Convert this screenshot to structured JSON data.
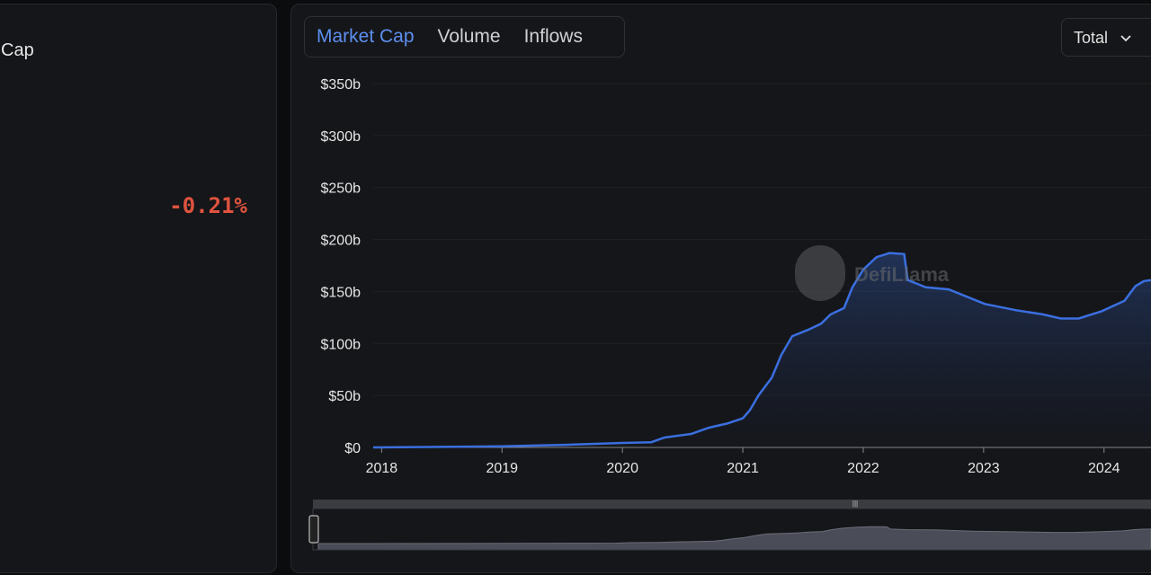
{
  "sidebar": {
    "label": "Cap",
    "change": "-0.21%"
  },
  "tabs": [
    "Market Cap",
    "Volume",
    "Inflows"
  ],
  "dropdown": "Total",
  "watermark": "DefiLlama",
  "chart_data": {
    "type": "line",
    "x": [
      2017.93,
      2019.0,
      2019.53,
      2020.0,
      2020.24,
      2020.35,
      2020.57,
      2020.72,
      2020.87,
      2021.0,
      2021.06,
      2021.13,
      2021.24,
      2021.32,
      2021.41,
      2021.54,
      2021.65,
      2021.73,
      2021.84,
      2021.91,
      2022.0,
      2022.11,
      2022.22,
      2022.34,
      2022.37,
      2022.52,
      2022.71,
      2022.86,
      2023.01,
      2023.27,
      2023.49,
      2023.64,
      2023.79,
      2023.98,
      2024.17,
      2024.26,
      2024.33,
      2024.39
    ],
    "series": [
      {
        "name": "Market Cap",
        "color": "#3b6fe0",
        "values": [
          0,
          1,
          2.5,
          4.3,
          5,
          9.5,
          13,
          19,
          23,
          28,
          36,
          50,
          67,
          89,
          107,
          113,
          119,
          128,
          134,
          154,
          171,
          183,
          187,
          186,
          161,
          154,
          152,
          145,
          138,
          132,
          128,
          124,
          124,
          131,
          141,
          155,
          160,
          161
        ]
      }
    ],
    "xlim": [
      2017.93,
      2024.39
    ],
    "xticks": [
      2018,
      2019,
      2020,
      2021,
      2022,
      2023,
      2024
    ],
    "ylim": [
      0,
      350
    ],
    "yticks": [
      {
        "value": 0,
        "label": "$0"
      },
      {
        "value": 50,
        "label": "$50b"
      },
      {
        "value": 100,
        "label": "$100b"
      },
      {
        "value": 150,
        "label": "$150b"
      },
      {
        "value": 200,
        "label": "$200b"
      },
      {
        "value": 250,
        "label": "$250b"
      },
      {
        "value": 300,
        "label": "$300b"
      },
      {
        "value": 350,
        "label": "$350b"
      }
    ]
  }
}
